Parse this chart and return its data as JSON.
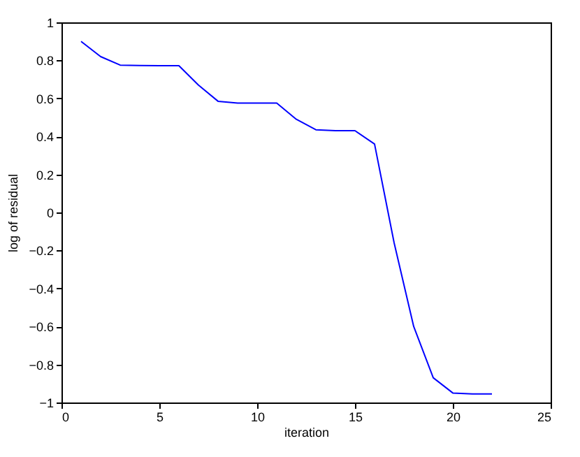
{
  "chart_data": {
    "type": "line",
    "xlabel": "iteration",
    "ylabel": "log of residual",
    "x": [
      1,
      2,
      3,
      4,
      5,
      6,
      7,
      8,
      9,
      10,
      11,
      12,
      13,
      14,
      15,
      16,
      17,
      18,
      19,
      20,
      21,
      22
    ],
    "series": [
      {
        "color": "#0000ff",
        "values": [
          0.9,
          0.82,
          0.775,
          0.773,
          0.772,
          0.772,
          0.67,
          0.585,
          0.575,
          0.575,
          0.575,
          0.49,
          0.435,
          0.43,
          0.43,
          0.36,
          -0.16,
          -0.6,
          -0.87,
          -0.95,
          -0.955,
          -0.955
        ]
      }
    ],
    "xlim": [
      0,
      25
    ],
    "xticks": [
      0,
      5,
      10,
      15,
      20,
      25
    ],
    "ylim": [
      -1,
      1
    ],
    "yticks": [
      -1,
      -0.8,
      -0.6,
      -0.4,
      -0.2,
      0,
      0.2,
      0.4,
      0.6,
      0.8,
      1
    ],
    "grid": false,
    "legend": false,
    "marker": "none",
    "line_style": "solid"
  }
}
